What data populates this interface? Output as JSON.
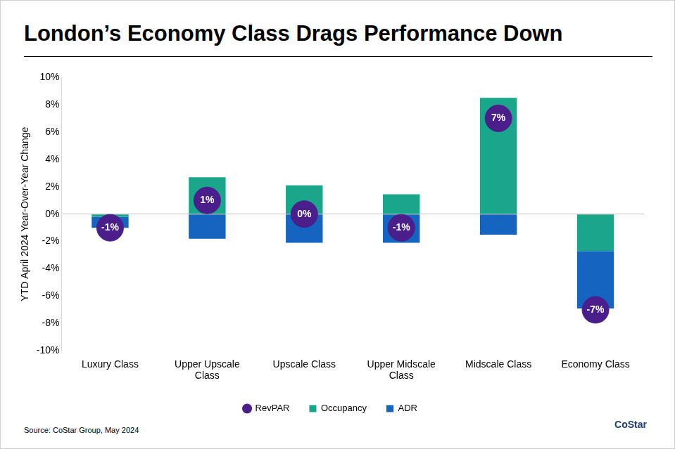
{
  "chart_data": {
    "type": "bar",
    "title": "London’s Economy Class Drags Performance Down",
    "ylabel": "YTD April 2024 Year-Over-Year Change",
    "annotations": [
      "Source: CoStar Group, May 2024",
      "CoStar"
    ],
    "categories": [
      "Luxury Class",
      "Upper Upscale Class",
      "Upscale Class",
      "Upper Midscale Class",
      "Midscale Class",
      "Economy Class"
    ],
    "series": [
      {
        "name": "Occupancy",
        "color": "#1aa68a",
        "values": [
          -0.2,
          2.7,
          2.1,
          1.45,
          8.5,
          -2.7
        ]
      },
      {
        "name": "ADR",
        "color": "#1565c0",
        "values": [
          -0.8,
          -1.8,
          -2.1,
          -2.1,
          -1.5,
          -4.2
        ]
      },
      {
        "name": "RevPAR",
        "type": "scatter",
        "marker": "circle",
        "color": "#4a1f8c",
        "data_labels": true,
        "values": [
          -1,
          1,
          0,
          -1,
          7,
          -7
        ],
        "value_labels": [
          "-1%",
          "1%",
          "0%",
          "-1%",
          "7%",
          "-7%"
        ]
      }
    ],
    "stacked": true,
    "legend": "bottom",
    "grid": false,
    "ylim": [
      -10,
      10
    ],
    "yticks": [
      {
        "value": -10,
        "label": "-10%"
      },
      {
        "value": -8,
        "label": "-8%"
      },
      {
        "value": -6,
        "label": "-6%"
      },
      {
        "value": -4,
        "label": "-4%"
      },
      {
        "value": -2,
        "label": "-2%"
      },
      {
        "value": 0,
        "label": "0%"
      },
      {
        "value": 2,
        "label": "2%"
      },
      {
        "value": 4,
        "label": "4%"
      },
      {
        "value": 6,
        "label": "6%"
      },
      {
        "value": 8,
        "label": "8%"
      },
      {
        "value": 10,
        "label": "10%"
      }
    ]
  }
}
